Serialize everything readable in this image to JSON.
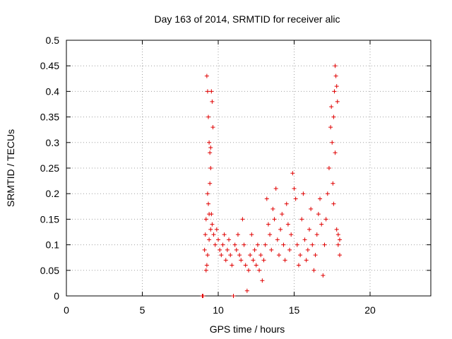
{
  "chart_data": {
    "type": "scatter",
    "title": "Day 163 of 2014, SRMTID for receiver alic",
    "xlabel": "GPS time / hours",
    "ylabel": "SRMTID / TECUs",
    "xlim": [
      0,
      24
    ],
    "ylim": [
      0,
      0.5
    ],
    "xticks": [
      0,
      5,
      10,
      15,
      20
    ],
    "yticks": [
      0,
      0.05,
      0.1,
      0.15,
      0.2,
      0.25,
      0.3,
      0.35,
      0.4,
      0.45,
      0.5
    ],
    "xtick_labels": [
      "0",
      "5",
      "10",
      "15",
      "20"
    ],
    "ytick_labels": [
      "0",
      "0.05",
      "0.1",
      "0.15",
      "0.2",
      "0.25",
      "0.3",
      "0.35",
      "0.4",
      "0.45",
      "0.5"
    ],
    "grid": true,
    "marker": "+",
    "color": "#e00000",
    "points": [
      [
        8.95,
        0.0
      ],
      [
        9.0,
        0.0
      ],
      [
        9.1,
        0.09
      ],
      [
        9.15,
        0.12
      ],
      [
        9.2,
        0.15
      ],
      [
        9.25,
        0.43
      ],
      [
        9.3,
        0.4
      ],
      [
        9.35,
        0.35
      ],
      [
        9.4,
        0.3
      ],
      [
        9.45,
        0.28
      ],
      [
        9.5,
        0.25
      ],
      [
        9.3,
        0.2
      ],
      [
        9.35,
        0.18
      ],
      [
        9.4,
        0.16
      ],
      [
        9.2,
        0.05
      ],
      [
        9.25,
        0.06
      ],
      [
        9.3,
        0.08
      ],
      [
        9.4,
        0.11
      ],
      [
        9.5,
        0.13
      ],
      [
        9.55,
        0.4
      ],
      [
        9.6,
        0.38
      ],
      [
        9.65,
        0.33
      ],
      [
        9.5,
        0.29
      ],
      [
        9.45,
        0.22
      ],
      [
        9.55,
        0.16
      ],
      [
        9.6,
        0.14
      ],
      [
        9.7,
        0.12
      ],
      [
        9.8,
        0.1
      ],
      [
        9.9,
        0.13
      ],
      [
        10.0,
        0.11
      ],
      [
        10.1,
        0.09
      ],
      [
        10.2,
        0.08
      ],
      [
        10.3,
        0.1
      ],
      [
        10.4,
        0.12
      ],
      [
        10.5,
        0.07
      ],
      [
        10.6,
        0.09
      ],
      [
        10.7,
        0.11
      ],
      [
        10.8,
        0.08
      ],
      [
        10.9,
        0.06
      ],
      [
        11.0,
        0.0
      ],
      [
        11.1,
        0.1
      ],
      [
        11.2,
        0.09
      ],
      [
        11.3,
        0.12
      ],
      [
        11.4,
        0.08
      ],
      [
        11.5,
        0.07
      ],
      [
        11.6,
        0.15
      ],
      [
        11.7,
        0.1
      ],
      [
        11.8,
        0.06
      ],
      [
        11.9,
        0.01
      ],
      [
        12.0,
        0.05
      ],
      [
        12.1,
        0.08
      ],
      [
        12.2,
        0.12
      ],
      [
        12.3,
        0.07
      ],
      [
        12.4,
        0.09
      ],
      [
        12.5,
        0.06
      ],
      [
        12.6,
        0.1
      ],
      [
        12.7,
        0.05
      ],
      [
        12.8,
        0.08
      ],
      [
        12.9,
        0.03
      ],
      [
        13.0,
        0.07
      ],
      [
        13.1,
        0.1
      ],
      [
        13.2,
        0.19
      ],
      [
        13.3,
        0.14
      ],
      [
        13.4,
        0.12
      ],
      [
        13.5,
        0.09
      ],
      [
        13.6,
        0.17
      ],
      [
        13.7,
        0.15
      ],
      [
        13.8,
        0.21
      ],
      [
        13.9,
        0.11
      ],
      [
        14.0,
        0.08
      ],
      [
        14.1,
        0.13
      ],
      [
        14.2,
        0.16
      ],
      [
        14.3,
        0.1
      ],
      [
        14.4,
        0.07
      ],
      [
        14.5,
        0.18
      ],
      [
        14.6,
        0.14
      ],
      [
        14.7,
        0.09
      ],
      [
        14.8,
        0.12
      ],
      [
        14.9,
        0.24
      ],
      [
        15.0,
        0.21
      ],
      [
        15.1,
        0.19
      ],
      [
        15.2,
        0.1
      ],
      [
        15.3,
        0.06
      ],
      [
        15.4,
        0.08
      ],
      [
        15.5,
        0.15
      ],
      [
        15.6,
        0.2
      ],
      [
        15.7,
        0.11
      ],
      [
        15.8,
        0.07
      ],
      [
        15.9,
        0.09
      ],
      [
        16.0,
        0.13
      ],
      [
        16.1,
        0.17
      ],
      [
        16.2,
        0.1
      ],
      [
        16.3,
        0.05
      ],
      [
        16.4,
        0.08
      ],
      [
        16.5,
        0.12
      ],
      [
        16.6,
        0.16
      ],
      [
        16.7,
        0.19
      ],
      [
        16.8,
        0.14
      ],
      [
        16.9,
        0.04
      ],
      [
        17.0,
        0.1
      ],
      [
        17.1,
        0.15
      ],
      [
        17.2,
        0.2
      ],
      [
        17.3,
        0.25
      ],
      [
        17.4,
        0.33
      ],
      [
        17.45,
        0.37
      ],
      [
        17.5,
        0.3
      ],
      [
        17.55,
        0.22
      ],
      [
        17.6,
        0.35
      ],
      [
        17.65,
        0.4
      ],
      [
        17.7,
        0.45
      ],
      [
        17.75,
        0.43
      ],
      [
        17.8,
        0.41
      ],
      [
        17.85,
        0.38
      ],
      [
        17.7,
        0.28
      ],
      [
        17.6,
        0.18
      ],
      [
        17.8,
        0.13
      ],
      [
        17.9,
        0.1
      ],
      [
        18.0,
        0.08
      ],
      [
        17.9,
        0.12
      ],
      [
        18.0,
        0.11
      ]
    ]
  }
}
